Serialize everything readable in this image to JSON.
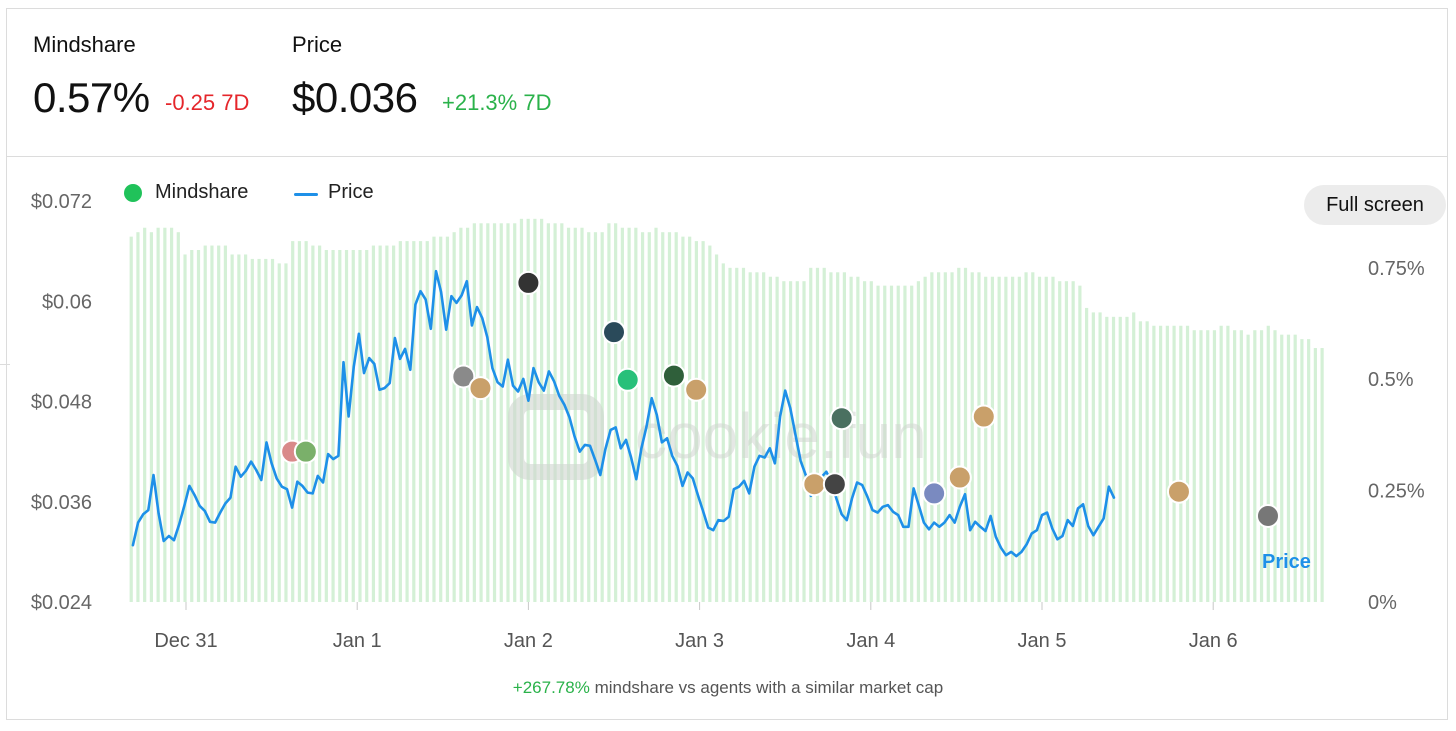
{
  "stats": {
    "mindshare": {
      "label": "Mindshare",
      "value": "0.57%",
      "change": "-0.25 7D"
    },
    "price": {
      "label": "Price",
      "value": "$0.036",
      "change": "+21.3% 7D"
    }
  },
  "legend": {
    "mindshare": "Mindshare",
    "price": "Price"
  },
  "full_screen_label": "Full screen",
  "watermark": "cookie.fun",
  "footer": {
    "highlight": "+267.78%",
    "text": " mindshare vs agents with a similar market cap"
  },
  "colors": {
    "price_line": "#1e90e8",
    "mindshare_bar": "#d4f0d6",
    "mindshare_dot": "#20c25a",
    "negative": "#e5262b",
    "positive": "#2ab24a"
  },
  "chart_data": {
    "type": "bar+line",
    "x_ticks": [
      "Dec 31",
      "Jan 1",
      "Jan 2",
      "Jan 3",
      "Jan 4",
      "Jan 5",
      "Jan 6"
    ],
    "y_left": {
      "ticks": [
        "$0.072",
        "$0.06",
        "$0.048",
        "$0.036",
        "$0.024"
      ],
      "range": [
        0.024,
        0.072
      ]
    },
    "y_right": {
      "ticks": [
        "0.75%",
        "0.5%",
        "0.25%",
        "0%"
      ],
      "range": [
        0,
        0.9
      ]
    },
    "line_label": "Price",
    "series": [
      {
        "name": "Mindshare",
        "kind": "bar",
        "x_start_day": -0.32,
        "x_step_day": 0.0393,
        "values": [
          0.82,
          0.83,
          0.84,
          0.83,
          0.84,
          0.84,
          0.84,
          0.83,
          0.78,
          0.79,
          0.79,
          0.8,
          0.8,
          0.8,
          0.8,
          0.78,
          0.78,
          0.78,
          0.77,
          0.77,
          0.77,
          0.77,
          0.76,
          0.76,
          0.81,
          0.81,
          0.81,
          0.8,
          0.8,
          0.79,
          0.79,
          0.79,
          0.79,
          0.79,
          0.79,
          0.79,
          0.8,
          0.8,
          0.8,
          0.8,
          0.81,
          0.81,
          0.81,
          0.81,
          0.81,
          0.82,
          0.82,
          0.82,
          0.83,
          0.84,
          0.84,
          0.85,
          0.85,
          0.85,
          0.85,
          0.85,
          0.85,
          0.85,
          0.86,
          0.86,
          0.86,
          0.86,
          0.85,
          0.85,
          0.85,
          0.84,
          0.84,
          0.84,
          0.83,
          0.83,
          0.83,
          0.85,
          0.85,
          0.84,
          0.84,
          0.84,
          0.83,
          0.83,
          0.84,
          0.83,
          0.83,
          0.83,
          0.82,
          0.82,
          0.81,
          0.81,
          0.8,
          0.78,
          0.76,
          0.75,
          0.75,
          0.75,
          0.74,
          0.74,
          0.74,
          0.73,
          0.73,
          0.72,
          0.72,
          0.72,
          0.72,
          0.75,
          0.75,
          0.75,
          0.74,
          0.74,
          0.74,
          0.73,
          0.73,
          0.72,
          0.72,
          0.71,
          0.71,
          0.71,
          0.71,
          0.71,
          0.71,
          0.72,
          0.73,
          0.74,
          0.74,
          0.74,
          0.74,
          0.75,
          0.75,
          0.74,
          0.74,
          0.73,
          0.73,
          0.73,
          0.73,
          0.73,
          0.73,
          0.74,
          0.74,
          0.73,
          0.73,
          0.73,
          0.72,
          0.72,
          0.72,
          0.71,
          0.66,
          0.65,
          0.65,
          0.64,
          0.64,
          0.64,
          0.64,
          0.65,
          0.63,
          0.63,
          0.62,
          0.62,
          0.62,
          0.62,
          0.62,
          0.62,
          0.61,
          0.61,
          0.61,
          0.61,
          0.62,
          0.62,
          0.61,
          0.61,
          0.6,
          0.61,
          0.61,
          0.62,
          0.61,
          0.6,
          0.6,
          0.6,
          0.59,
          0.59,
          0.57,
          0.57
        ]
      },
      {
        "name": "Price",
        "kind": "line",
        "points": [
          [
            -0.31,
            0.0308
          ],
          [
            -0.28,
            0.0335
          ],
          [
            -0.25,
            0.0345
          ],
          [
            -0.22,
            0.035
          ],
          [
            -0.19,
            0.0392
          ],
          [
            -0.16,
            0.0346
          ],
          [
            -0.13,
            0.0313
          ],
          [
            -0.1,
            0.0319
          ],
          [
            -0.07,
            0.0314
          ],
          [
            -0.04,
            0.0333
          ],
          [
            -0.01,
            0.0355
          ],
          [
            0.02,
            0.0379
          ],
          [
            0.05,
            0.0368
          ],
          [
            0.08,
            0.0355
          ],
          [
            0.11,
            0.0349
          ],
          [
            0.14,
            0.0336
          ],
          [
            0.17,
            0.0335
          ],
          [
            0.2,
            0.0347
          ],
          [
            0.23,
            0.0358
          ],
          [
            0.26,
            0.0365
          ],
          [
            0.29,
            0.0402
          ],
          [
            0.32,
            0.039
          ],
          [
            0.35,
            0.0397
          ],
          [
            0.38,
            0.0408
          ],
          [
            0.41,
            0.0398
          ],
          [
            0.44,
            0.0386
          ],
          [
            0.47,
            0.0431
          ],
          [
            0.5,
            0.0406
          ],
          [
            0.53,
            0.0388
          ],
          [
            0.56,
            0.0378
          ],
          [
            0.59,
            0.0375
          ],
          [
            0.62,
            0.0353
          ],
          [
            0.65,
            0.0384
          ],
          [
            0.68,
            0.0379
          ],
          [
            0.71,
            0.0371
          ],
          [
            0.74,
            0.037
          ],
          [
            0.77,
            0.0391
          ],
          [
            0.8,
            0.0383
          ],
          [
            0.83,
            0.0417
          ],
          [
            0.86,
            0.0411
          ],
          [
            0.89,
            0.0415
          ],
          [
            0.92,
            0.0527
          ],
          [
            0.95,
            0.0462
          ],
          [
            0.98,
            0.0522
          ],
          [
            1.01,
            0.0561
          ],
          [
            1.04,
            0.0514
          ],
          [
            1.07,
            0.0532
          ],
          [
            1.1,
            0.0525
          ],
          [
            1.13,
            0.0494
          ],
          [
            1.16,
            0.0496
          ],
          [
            1.19,
            0.0502
          ],
          [
            1.22,
            0.0556
          ],
          [
            1.25,
            0.0531
          ],
          [
            1.28,
            0.0543
          ],
          [
            1.31,
            0.0518
          ],
          [
            1.34,
            0.0596
          ],
          [
            1.37,
            0.0612
          ],
          [
            1.4,
            0.0602
          ],
          [
            1.43,
            0.0567
          ],
          [
            1.46,
            0.0636
          ],
          [
            1.49,
            0.0611
          ],
          [
            1.52,
            0.0566
          ],
          [
            1.55,
            0.0606
          ],
          [
            1.58,
            0.0598
          ],
          [
            1.61,
            0.0607
          ],
          [
            1.64,
            0.0624
          ],
          [
            1.67,
            0.0571
          ],
          [
            1.7,
            0.0593
          ],
          [
            1.73,
            0.058
          ],
          [
            1.76,
            0.0557
          ],
          [
            1.79,
            0.052
          ],
          [
            1.82,
            0.0503
          ],
          [
            1.85,
            0.0498
          ],
          [
            1.88,
            0.053
          ],
          [
            1.91,
            0.0499
          ],
          [
            1.94,
            0.0492
          ],
          [
            1.97,
            0.0507
          ],
          [
            2.0,
            0.0481
          ],
          [
            2.03,
            0.052
          ],
          [
            2.06,
            0.0503
          ],
          [
            2.09,
            0.0493
          ],
          [
            2.12,
            0.0516
          ],
          [
            2.15,
            0.0504
          ],
          [
            2.18,
            0.0487
          ],
          [
            2.21,
            0.0476
          ],
          [
            2.24,
            0.0461
          ],
          [
            2.27,
            0.0438
          ],
          [
            2.3,
            0.042
          ],
          [
            2.33,
            0.0428
          ],
          [
            2.36,
            0.0427
          ],
          [
            2.39,
            0.041
          ],
          [
            2.42,
            0.0392
          ],
          [
            2.45,
            0.0423
          ],
          [
            2.48,
            0.0446
          ],
          [
            2.51,
            0.0449
          ],
          [
            2.54,
            0.0424
          ],
          [
            2.57,
            0.0434
          ],
          [
            2.6,
            0.0413
          ],
          [
            2.63,
            0.0387
          ],
          [
            2.66,
            0.0424
          ],
          [
            2.69,
            0.045
          ],
          [
            2.72,
            0.0484
          ],
          [
            2.75,
            0.0464
          ],
          [
            2.78,
            0.0431
          ],
          [
            2.81,
            0.0436
          ],
          [
            2.84,
            0.0415
          ],
          [
            2.87,
            0.0403
          ],
          [
            2.9,
            0.0379
          ],
          [
            2.93,
            0.0395
          ],
          [
            2.96,
            0.0388
          ],
          [
            2.99,
            0.0368
          ],
          [
            3.02,
            0.0349
          ],
          [
            3.05,
            0.0329
          ],
          [
            3.08,
            0.0326
          ],
          [
            3.11,
            0.0338
          ],
          [
            3.14,
            0.0337
          ],
          [
            3.17,
            0.0342
          ],
          [
            3.2,
            0.0375
          ],
          [
            3.23,
            0.0378
          ],
          [
            3.26,
            0.0385
          ],
          [
            3.29,
            0.037
          ],
          [
            3.32,
            0.0402
          ],
          [
            3.35,
            0.0415
          ],
          [
            3.38,
            0.0413
          ],
          [
            3.41,
            0.0424
          ],
          [
            3.44,
            0.0406
          ],
          [
            3.47,
            0.0462
          ],
          [
            3.5,
            0.0493
          ],
          [
            3.53,
            0.0472
          ],
          [
            3.56,
            0.044
          ],
          [
            3.59,
            0.0409
          ],
          [
            3.62,
            0.0392
          ],
          [
            3.65,
            0.0367
          ],
          [
            3.68,
            0.0386
          ],
          [
            3.71,
            0.0389
          ],
          [
            3.74,
            0.0396
          ],
          [
            3.77,
            0.0384
          ],
          [
            3.8,
            0.0363
          ],
          [
            3.83,
            0.0345
          ],
          [
            3.86,
            0.0338
          ],
          [
            3.89,
            0.0364
          ],
          [
            3.92,
            0.0383
          ],
          [
            3.95,
            0.038
          ],
          [
            3.98,
            0.0366
          ],
          [
            4.01,
            0.035
          ],
          [
            4.04,
            0.0347
          ],
          [
            4.07,
            0.0354
          ],
          [
            4.1,
            0.0356
          ],
          [
            4.13,
            0.0348
          ],
          [
            4.16,
            0.0344
          ],
          [
            4.19,
            0.033
          ],
          [
            4.22,
            0.033
          ],
          [
            4.25,
            0.0376
          ],
          [
            4.28,
            0.0356
          ],
          [
            4.31,
            0.0335
          ],
          [
            4.34,
            0.0327
          ],
          [
            4.37,
            0.0335
          ],
          [
            4.4,
            0.033
          ],
          [
            4.43,
            0.0335
          ],
          [
            4.46,
            0.0344
          ],
          [
            4.49,
            0.0335
          ],
          [
            4.52,
            0.0354
          ],
          [
            4.55,
            0.0369
          ],
          [
            4.58,
            0.0326
          ],
          [
            4.61,
            0.0336
          ],
          [
            4.64,
            0.033
          ],
          [
            4.67,
            0.0325
          ],
          [
            4.7,
            0.0343
          ],
          [
            4.73,
            0.0318
          ],
          [
            4.76,
            0.0305
          ],
          [
            4.79,
            0.0296
          ],
          [
            4.82,
            0.03
          ],
          [
            4.85,
            0.0295
          ],
          [
            4.88,
            0.03
          ],
          [
            4.91,
            0.0309
          ],
          [
            4.94,
            0.0322
          ],
          [
            4.97,
            0.0326
          ],
          [
            5.0,
            0.0344
          ],
          [
            5.03,
            0.0347
          ],
          [
            5.06,
            0.0328
          ],
          [
            5.09,
            0.0315
          ],
          [
            5.12,
            0.0319
          ],
          [
            5.15,
            0.0338
          ],
          [
            5.18,
            0.0331
          ],
          [
            5.21,
            0.0352
          ],
          [
            5.24,
            0.0357
          ],
          [
            5.27,
            0.0331
          ],
          [
            5.3,
            0.032
          ],
          [
            5.33,
            0.033
          ],
          [
            5.36,
            0.034
          ],
          [
            5.39,
            0.0378
          ],
          [
            5.42,
            0.0365
          ]
        ]
      }
    ]
  }
}
